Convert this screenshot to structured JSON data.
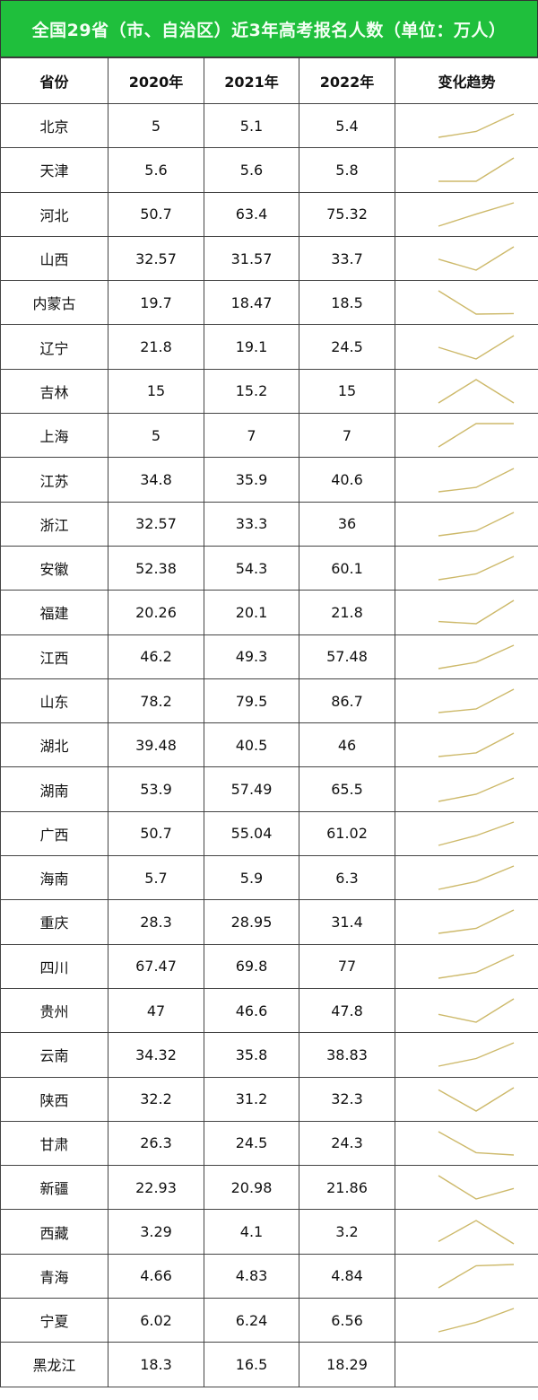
{
  "title": "全国29省（市、自治区）近3年高考报名人数（单位：万人）",
  "colors": {
    "title_bg": "#1fbf3c",
    "sparkline": "#cdb96a"
  },
  "headers": [
    "省份",
    "2020年",
    "2021年",
    "2022年",
    "变化趋势"
  ],
  "rows": [
    {
      "province": "北京",
      "y2020": "5",
      "y2021": "5.1",
      "y2022": "5.4",
      "trend": true
    },
    {
      "province": "天津",
      "y2020": "5.6",
      "y2021": "5.6",
      "y2022": "5.8",
      "trend": true
    },
    {
      "province": "河北",
      "y2020": "50.7",
      "y2021": "63.4",
      "y2022": "75.32",
      "trend": true
    },
    {
      "province": "山西",
      "y2020": "32.57",
      "y2021": "31.57",
      "y2022": "33.7",
      "trend": true
    },
    {
      "province": "内蒙古",
      "y2020": "19.7",
      "y2021": "18.47",
      "y2022": "18.5",
      "trend": true
    },
    {
      "province": "辽宁",
      "y2020": "21.8",
      "y2021": "19.1",
      "y2022": "24.5",
      "trend": true
    },
    {
      "province": "吉林",
      "y2020": "15",
      "y2021": "15.2",
      "y2022": "15",
      "trend": true
    },
    {
      "province": "上海",
      "y2020": "5",
      "y2021": "7",
      "y2022": "7",
      "trend": true
    },
    {
      "province": "江苏",
      "y2020": "34.8",
      "y2021": "35.9",
      "y2022": "40.6",
      "trend": true
    },
    {
      "province": "浙江",
      "y2020": "32.57",
      "y2021": "33.3",
      "y2022": "36",
      "trend": true
    },
    {
      "province": "安徽",
      "y2020": "52.38",
      "y2021": "54.3",
      "y2022": "60.1",
      "trend": true
    },
    {
      "province": "福建",
      "y2020": "20.26",
      "y2021": "20.1",
      "y2022": "21.8",
      "trend": true
    },
    {
      "province": "江西",
      "y2020": "46.2",
      "y2021": "49.3",
      "y2022": "57.48",
      "trend": true
    },
    {
      "province": "山东",
      "y2020": "78.2",
      "y2021": "79.5",
      "y2022": "86.7",
      "trend": true
    },
    {
      "province": "湖北",
      "y2020": "39.48",
      "y2021": "40.5",
      "y2022": "46",
      "trend": true
    },
    {
      "province": "湖南",
      "y2020": "53.9",
      "y2021": "57.49",
      "y2022": "65.5",
      "trend": true
    },
    {
      "province": "广西",
      "y2020": "50.7",
      "y2021": "55.04",
      "y2022": "61.02",
      "trend": true
    },
    {
      "province": "海南",
      "y2020": "5.7",
      "y2021": "5.9",
      "y2022": "6.3",
      "trend": true
    },
    {
      "province": "重庆",
      "y2020": "28.3",
      "y2021": "28.95",
      "y2022": "31.4",
      "trend": true
    },
    {
      "province": "四川",
      "y2020": "67.47",
      "y2021": "69.8",
      "y2022": "77",
      "trend": true
    },
    {
      "province": "贵州",
      "y2020": "47",
      "y2021": "46.6",
      "y2022": "47.8",
      "trend": true
    },
    {
      "province": "云南",
      "y2020": "34.32",
      "y2021": "35.8",
      "y2022": "38.83",
      "trend": true
    },
    {
      "province": "陕西",
      "y2020": "32.2",
      "y2021": "31.2",
      "y2022": "32.3",
      "trend": true
    },
    {
      "province": "甘肃",
      "y2020": "26.3",
      "y2021": "24.5",
      "y2022": "24.3",
      "trend": true
    },
    {
      "province": "新疆",
      "y2020": "22.93",
      "y2021": "20.98",
      "y2022": "21.86",
      "trend": true
    },
    {
      "province": "西藏",
      "y2020": "3.29",
      "y2021": "4.1",
      "y2022": "3.2",
      "trend": true
    },
    {
      "province": "青海",
      "y2020": "4.66",
      "y2021": "4.83",
      "y2022": "4.84",
      "trend": true
    },
    {
      "province": "宁夏",
      "y2020": "6.02",
      "y2021": "6.24",
      "y2022": "6.56",
      "trend": true
    },
    {
      "province": "黑龙江",
      "y2020": "18.3",
      "y2021": "16.5",
      "y2022": "18.29",
      "trend": false
    }
  ]
}
